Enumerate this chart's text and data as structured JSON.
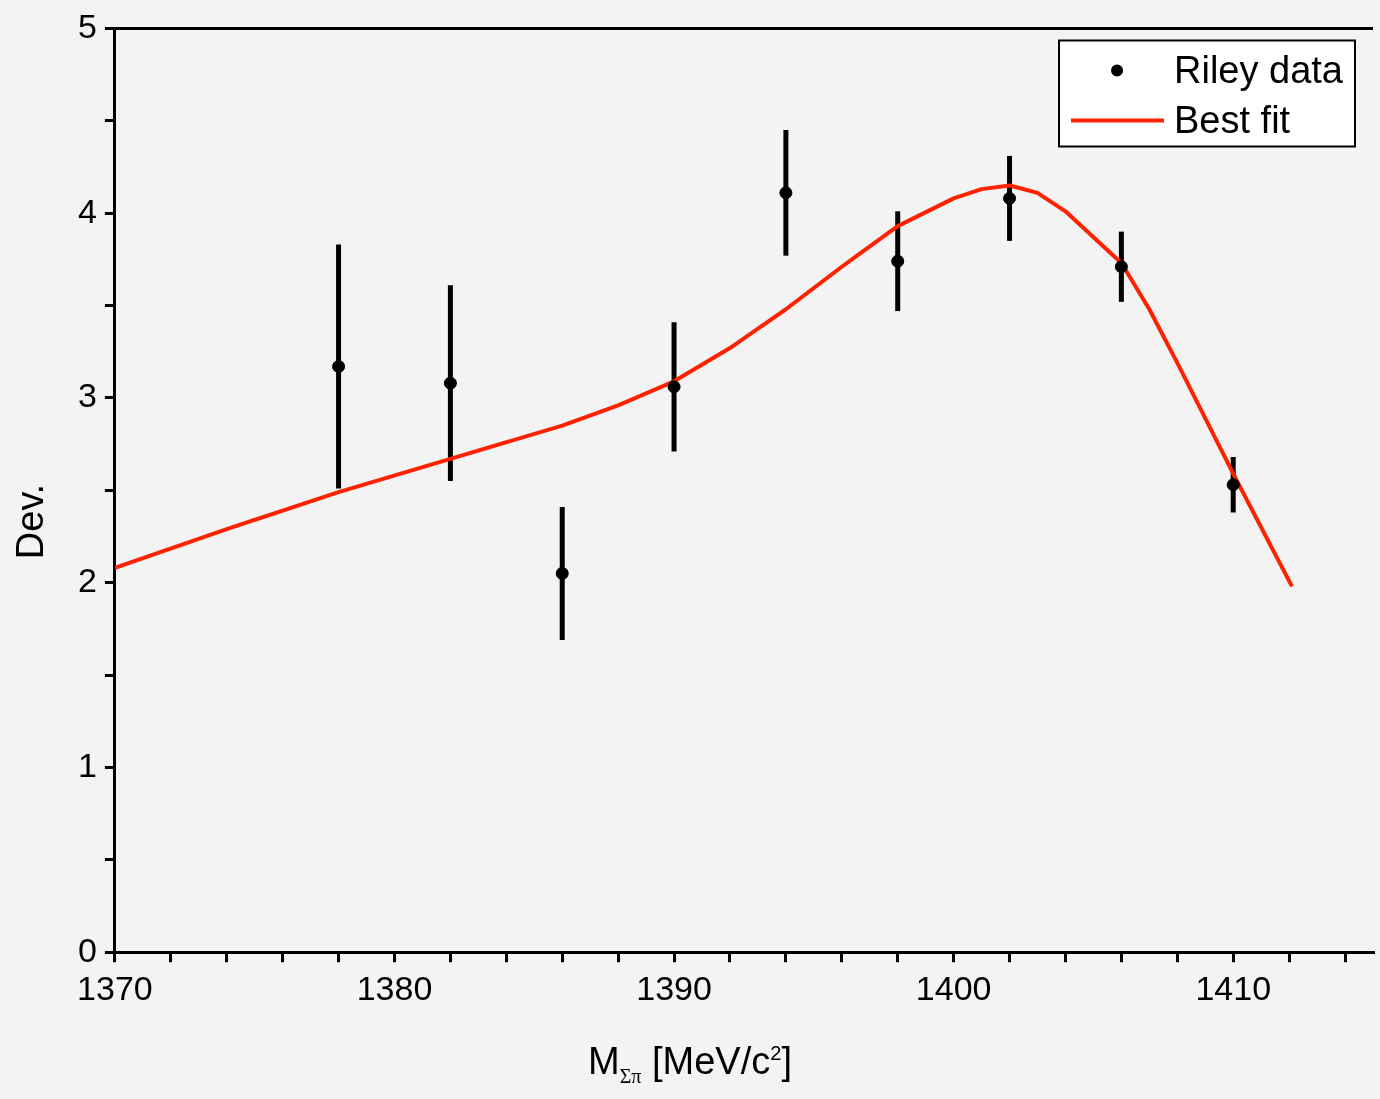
{
  "chart_data": {
    "type": "scatter",
    "xlabel": "M$_{Σπ}$  [MeV/c$^{2}$]",
    "ylabel": "Dev.",
    "xlim": [
      1370,
      1415
    ],
    "ylim": [
      0,
      5
    ],
    "xticks": [
      1370,
      {
        "value": 1372,
        "label": null
      },
      {
        "value": 1374,
        "label": null
      },
      {
        "value": 1376,
        "label": null
      },
      {
        "value": 1378,
        "label": null
      },
      1380,
      {
        "value": 1382,
        "label": null
      },
      {
        "value": 1384,
        "label": null
      },
      {
        "value": 1386,
        "label": null
      },
      {
        "value": 1388,
        "label": null
      },
      1390,
      {
        "value": 1392,
        "label": null
      },
      {
        "value": 1394,
        "label": null
      },
      {
        "value": 1396,
        "label": null
      },
      {
        "value": 1398,
        "label": null
      },
      1400,
      {
        "value": 1402,
        "label": null
      },
      {
        "value": 1404,
        "label": null
      },
      {
        "value": 1406,
        "label": null
      },
      {
        "value": 1408,
        "label": null
      },
      1410,
      {
        "value": 1412,
        "label": null
      },
      {
        "value": 1414,
        "label": null
      }
    ],
    "yticks": [
      0,
      {
        "value": 0.5,
        "label": null
      },
      1,
      {
        "value": 1.5,
        "label": null
      },
      2,
      {
        "value": 2.5,
        "label": null
      },
      3,
      {
        "value": 3.5,
        "label": null
      },
      4,
      {
        "value": 4.5,
        "label": null
      },
      5
    ],
    "legend": "top right",
    "grid": false,
    "series": [
      {
        "name": "Riley data",
        "type": "scatter",
        "color": "#000000",
        "marker": "circle",
        "x": [
          1378,
          1382,
          1386,
          1390,
          1394,
          1398,
          1402,
          1406,
          1410
        ],
        "values": [
          3.17,
          3.08,
          2.05,
          3.06,
          4.11,
          3.74,
          4.08,
          3.71,
          2.53
        ],
        "errors": [
          0.66,
          0.53,
          0.36,
          0.35,
          0.34,
          0.27,
          0.23,
          0.19,
          0.15
        ]
      },
      {
        "name": "Best fit",
        "type": "line",
        "color": "#ff2200",
        "marker": "none",
        "line_style": "solid",
        "x": [
          1370,
          1374,
          1378,
          1382,
          1386,
          1388,
          1390,
          1392,
          1394,
          1396,
          1398,
          1400,
          1401,
          1402,
          1403,
          1404,
          1406,
          1407,
          1408,
          1410,
          1412.1
        ],
        "values": [
          2.08,
          2.29,
          2.49,
          2.67,
          2.85,
          2.96,
          3.09,
          3.27,
          3.48,
          3.71,
          3.93,
          4.08,
          4.13,
          4.15,
          4.11,
          4.01,
          3.73,
          3.48,
          3.19,
          2.59,
          1.98
        ]
      }
    ]
  }
}
